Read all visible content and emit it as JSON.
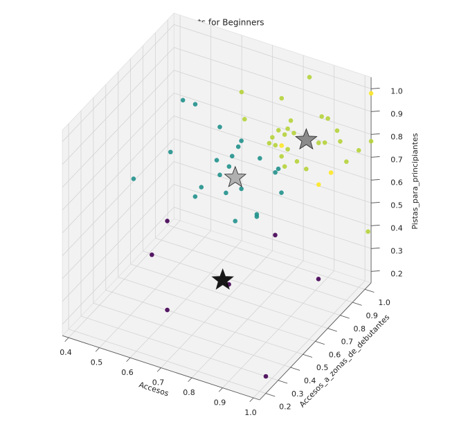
{
  "chart_data": {
    "type": "scatter3d",
    "title": "Resorts for Beginners",
    "xlabel": "Accesos",
    "ylabel": "Accesos_a_zonas_de_debutantes",
    "zlabel": "Pistas_para_principiantes",
    "xlim": [
      0.38,
      1.02
    ],
    "ylim": [
      0.15,
      1.05
    ],
    "zlim": [
      0.15,
      1.05
    ],
    "xticks": [
      0.4,
      0.5,
      0.6,
      0.7,
      0.8,
      0.9,
      {
        "value": 1,
        "label": "1.0"
      }
    ],
    "yticks": [
      0.2,
      0.3,
      0.4,
      0.5,
      0.6,
      0.7,
      0.8,
      0.9,
      {
        "value": 1,
        "label": "1.0"
      }
    ],
    "zticks": [
      0.2,
      0.3,
      0.4,
      0.5,
      0.6,
      0.7,
      0.8,
      0.9,
      {
        "value": 1,
        "label": "1.0"
      }
    ],
    "grid": true,
    "series": [
      {
        "color": "#440154",
        "marker": "circle",
        "x": [
          0.66,
          0.61,
          0.95,
          1.01,
          0.66,
          0.98,
          0.86
        ],
        "y": [
          0.3,
          0.3,
          0.45,
          0.65,
          0.3,
          0.3,
          0.3
        ],
        "z": [
          0.69,
          0.52,
          0.67,
          0.39,
          0.3,
          0.15,
          0.5
        ]
      },
      {
        "color": "#21918c",
        "marker": "circle",
        "x": [
          0.57,
          0.61,
          0.57,
          0.45,
          0.73,
          0.8,
          0.79,
          0.77,
          0.72,
          0.76,
          0.73,
          0.86,
          0.92,
          0.91,
          0.8,
          0.67,
          0.65,
          0.75,
          0.85,
          0.85,
          0.78,
          0.93
        ],
        "y": [
          0.65,
          0.65,
          0.55,
          0.55,
          0.55,
          0.55,
          0.55,
          0.55,
          0.55,
          0.55,
          0.55,
          0.55,
          0.55,
          0.55,
          0.55,
          0.55,
          0.55,
          0.55,
          0.55,
          0.55,
          0.55,
          0.55
        ],
        "z": [
          0.98,
          0.98,
          0.81,
          0.64,
          0.99,
          0.96,
          0.93,
          0.88,
          0.84,
          0.83,
          0.78,
          0.91,
          0.89,
          0.87,
          0.75,
          0.7,
          0.65,
          0.71,
          0.66,
          0.65,
          0.6,
          0.79
        ]
      },
      {
        "color": "#b5d33a",
        "marker": "circle",
        "x": [
          0.84,
          0.68,
          0.81,
          0.73,
          0.88,
          0.92,
          0.94,
          0.84,
          0.87,
          0.89,
          0.82,
          0.86,
          0.81,
          0.83,
          0.87,
          0.97,
          0.91,
          0.93,
          0.96,
          1.0,
          1.02,
          0.85,
          0.9,
          0.86,
          0.93,
          0.98,
          1.01
        ],
        "y": [
          1.0,
          0.85,
          0.85,
          0.75,
          0.75,
          0.9,
          0.9,
          0.75,
          0.75,
          0.75,
          0.75,
          0.75,
          0.75,
          0.75,
          0.75,
          0.9,
          0.9,
          0.9,
          0.95,
          1.0,
          1.05,
          0.75,
          0.75,
          0.75,
          0.75,
          0.95,
          1.05
        ],
        "z": [
          1.0,
          0.95,
          0.98,
          0.91,
          0.97,
          0.92,
          0.92,
          0.91,
          0.93,
          0.92,
          0.87,
          0.9,
          0.84,
          0.84,
          0.84,
          0.88,
          0.8,
          0.81,
          0.8,
          0.75,
          0.77,
          0.8,
          0.8,
          0.76,
          0.78,
          0.72,
          0.37
        ]
      },
      {
        "color": "#fde725",
        "marker": "circle",
        "x": [
          1.02,
          0.83,
          0.93,
          0.89
        ],
        "y": [
          1.05,
          0.8,
          0.95,
          0.95
        ],
        "z": [
          0.98,
          0.81,
          0.65,
          0.58
        ]
      },
      {
        "color": "#000000",
        "marker": "star",
        "x": [
          0.84
        ],
        "y": [
          0.3
        ],
        "z": [
          0.51
        ]
      },
      {
        "color": "#808080",
        "marker": "star",
        "x": [
          0.91
        ],
        "y": [
          0.8
        ],
        "z": [
          0.87
        ]
      },
      {
        "color": "#a9a9a9",
        "marker": "star",
        "x": [
          0.78
        ],
        "y": [
          0.55
        ],
        "z": [
          0.79
        ]
      }
    ]
  }
}
